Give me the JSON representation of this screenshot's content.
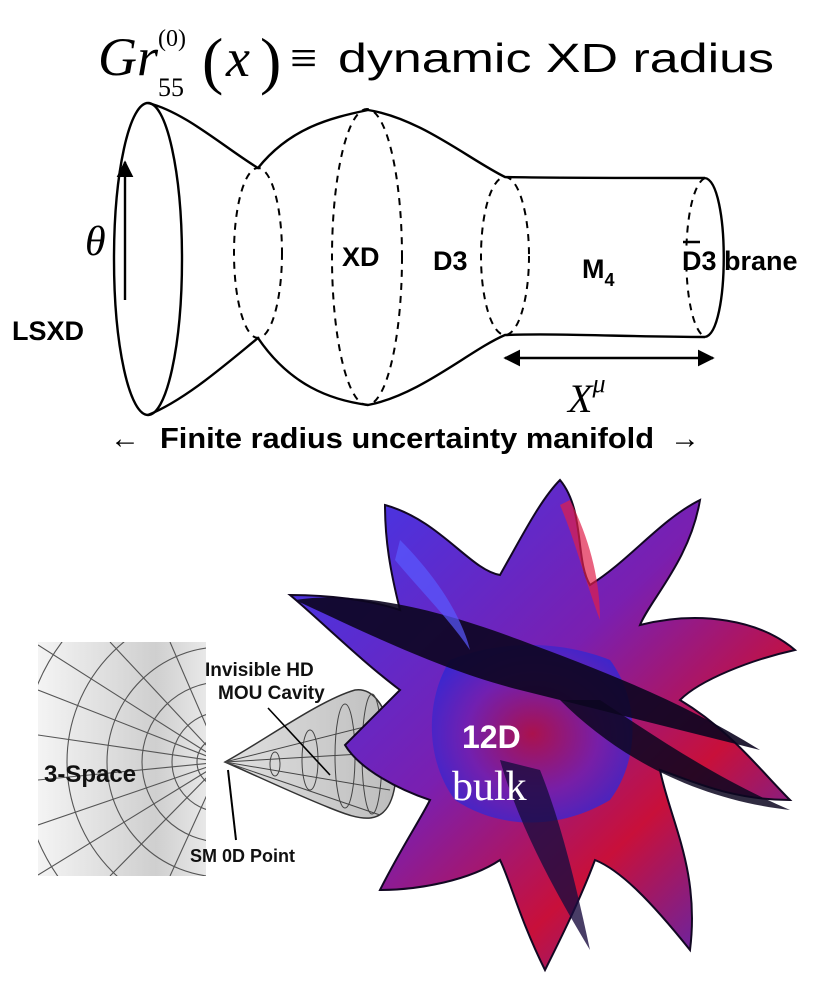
{
  "title": {
    "formula_main": "Gr",
    "formula_sup": "(0)",
    "formula_sub": "55",
    "formula_arg": "x",
    "equiv": "≡",
    "text": "dynamic XD radius"
  },
  "manifold": {
    "theta": "θ",
    "lsxd": "LSXD",
    "xd": "XD",
    "d3": "D3",
    "m4": "M",
    "m4_sub": "4",
    "d3bar": "D3",
    "brane": "brane",
    "xmu": "X",
    "xmu_sup": "μ",
    "arrow_left": "←",
    "caption": "Finite radius uncertainty manifold",
    "arrow_right": "→"
  },
  "lower": {
    "space_label": "3-Space",
    "cavity_line1": "Invisible HD",
    "cavity_line2": "MOU Cavity",
    "point_label": "SM 0D Point",
    "bulk_line1": "12D",
    "bulk_line2": "bulk"
  },
  "colors": {
    "ink": "#000000",
    "bulk_blue": "#2f2fe8",
    "bulk_red": "#c8103a",
    "bulk_dark": "#0c0620",
    "grid_gray": "#d6d6d6"
  },
  "icons": [
    "up-arrow-icon",
    "left-arrow-icon",
    "right-arrow-icon",
    "double-arrow-icon"
  ]
}
